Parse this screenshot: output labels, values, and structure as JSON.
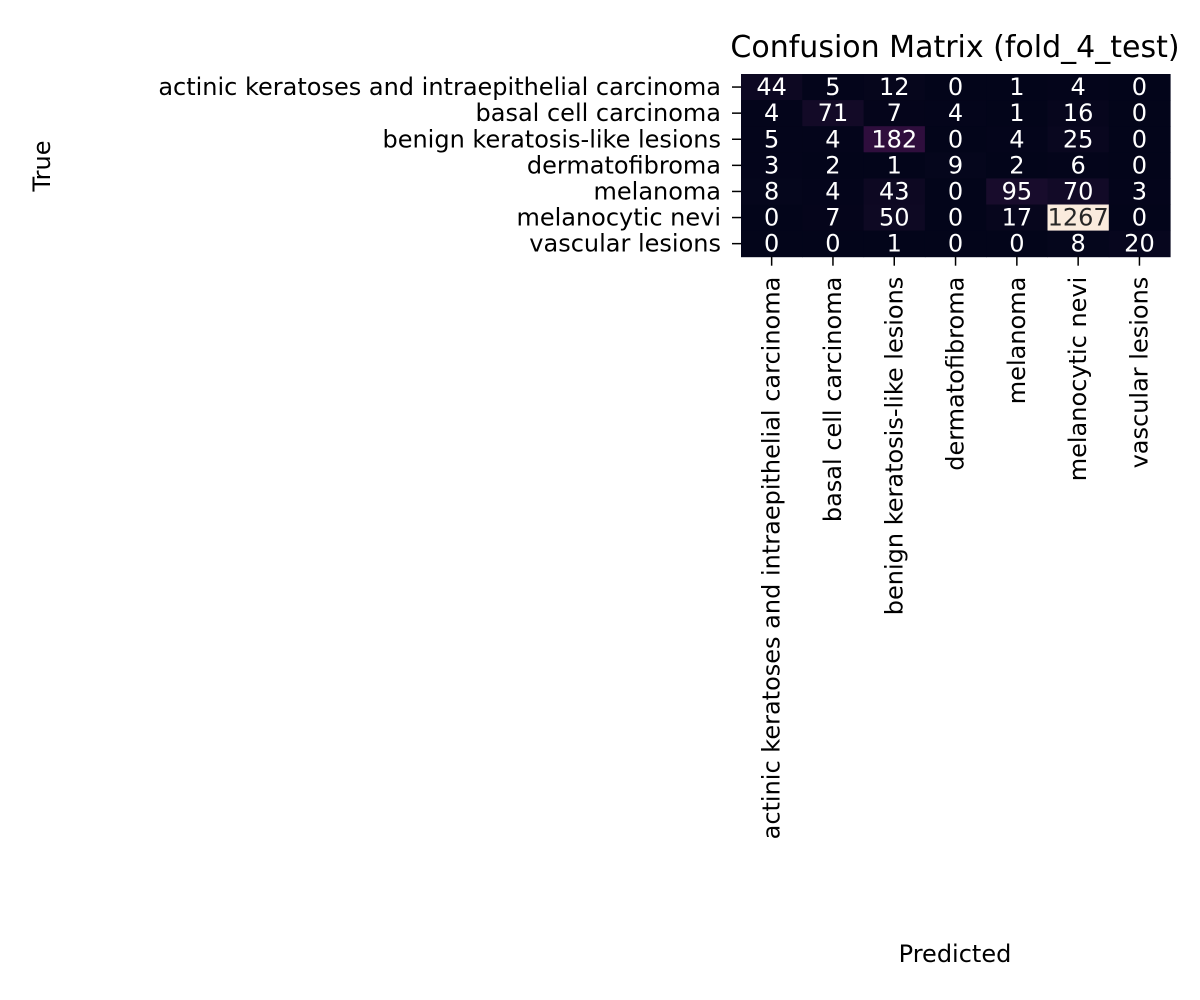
{
  "chart_data": {
    "type": "heatmap",
    "title": "Confusion Matrix (fold_4_test)",
    "xlabel": "Predicted",
    "ylabel": "True",
    "row_labels": [
      "actinic keratoses and intraepithelial carcinoma",
      "basal cell carcinoma",
      "benign keratosis-like lesions",
      "dermatofibroma",
      "melanoma",
      "melanocytic nevi",
      "vascular lesions"
    ],
    "col_labels": [
      "actinic keratoses and intraepithelial carcinoma",
      "basal cell carcinoma",
      "benign keratosis-like lesions",
      "dermatofibroma",
      "melanoma",
      "melanocytic nevi",
      "vascular lesions"
    ],
    "values": [
      [
        44,
        5,
        12,
        0,
        1,
        4,
        0
      ],
      [
        4,
        71,
        7,
        4,
        1,
        16,
        0
      ],
      [
        5,
        4,
        182,
        0,
        4,
        25,
        0
      ],
      [
        3,
        2,
        1,
        9,
        2,
        6,
        0
      ],
      [
        8,
        4,
        43,
        0,
        95,
        70,
        3
      ],
      [
        0,
        7,
        50,
        0,
        17,
        1267,
        0
      ],
      [
        0,
        0,
        1,
        0,
        0,
        8,
        20
      ]
    ],
    "colormap": "rocket",
    "vmin": 0,
    "vmax": 1267,
    "colorbar": false,
    "grid": false
  }
}
